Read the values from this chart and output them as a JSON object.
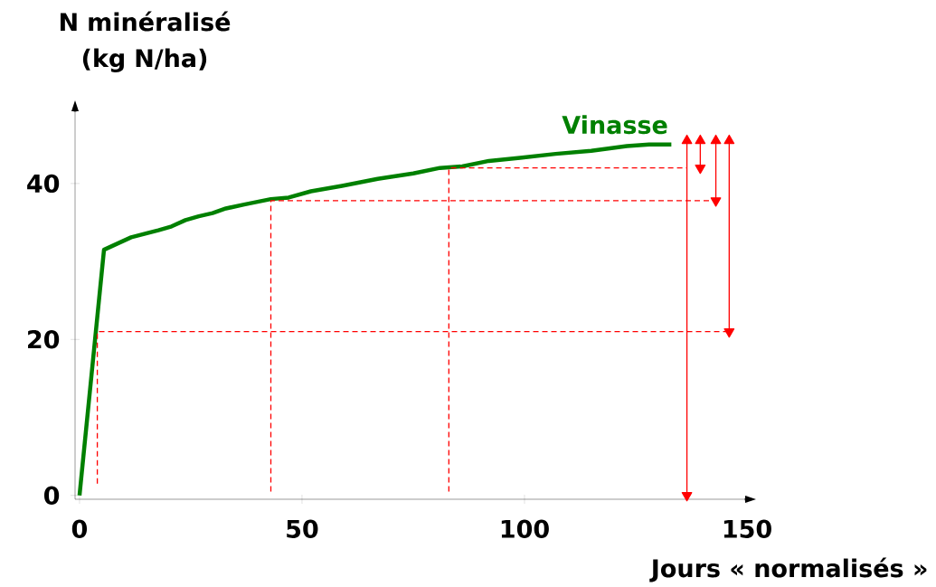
{
  "chart_data": {
    "type": "line",
    "xlabel": "Jours « normalisés »",
    "ylabel": "N minéralisé (kg N/ha)",
    "xlim": [
      -1,
      150
    ],
    "ylim": [
      -0.5,
      49.5
    ],
    "xticks": [
      0,
      50,
      100,
      150
    ],
    "yticks": [
      0,
      20,
      40
    ],
    "grid": false,
    "marker": "none",
    "line_style": "solid",
    "series": [
      {
        "name": "Vinasse",
        "color": "#008000",
        "x": [
          0,
          5.5,
          11.6,
          17.7,
          20.7,
          23.8,
          26.8,
          29.9,
          32.9,
          37,
          43,
          47,
          52,
          59,
          67,
          75,
          81,
          86,
          92,
          99,
          107,
          115,
          123,
          128,
          133
        ],
        "values": [
          0,
          31.5,
          33.1,
          34.0,
          34.5,
          35.3,
          35.8,
          36.2,
          36.8,
          37.3,
          38.0,
          38.2,
          39.0,
          39.7,
          40.6,
          41.3,
          42.0,
          42.2,
          42.9,
          43.3,
          43.8,
          44.2,
          44.8,
          45.0,
          45.0
        ]
      },
      {
        "color": "#ff0000",
        "line_style": "dashed",
        "x": [
          4,
          4,
          146
        ],
        "values": [
          1.5,
          21,
          21
        ]
      },
      {
        "color": "#ff0000",
        "line_style": "dashed",
        "x": [
          43,
          43,
          143
        ],
        "values": [
          0.5,
          37.8,
          37.8
        ]
      },
      {
        "color": "#ff0000",
        "line_style": "dashed",
        "x": [
          83,
          83,
          136.5
        ],
        "values": [
          0.5,
          42,
          42
        ]
      },
      {
        "color": "#ff0000",
        "marker": "triangle",
        "x": [
          136.5,
          136.5
        ],
        "values": [
          45.5,
          0
        ]
      },
      {
        "color": "#ff0000",
        "marker": "triangle",
        "x": [
          139.5,
          139.5
        ],
        "values": [
          45.5,
          42
        ]
      },
      {
        "color": "#ff0000",
        "marker": "triangle",
        "x": [
          143,
          143
        ],
        "values": [
          45.5,
          37.8
        ]
      },
      {
        "color": "#ff0000",
        "marker": "triangle",
        "x": [
          146,
          146
        ],
        "values": [
          45.5,
          21
        ]
      }
    ]
  }
}
